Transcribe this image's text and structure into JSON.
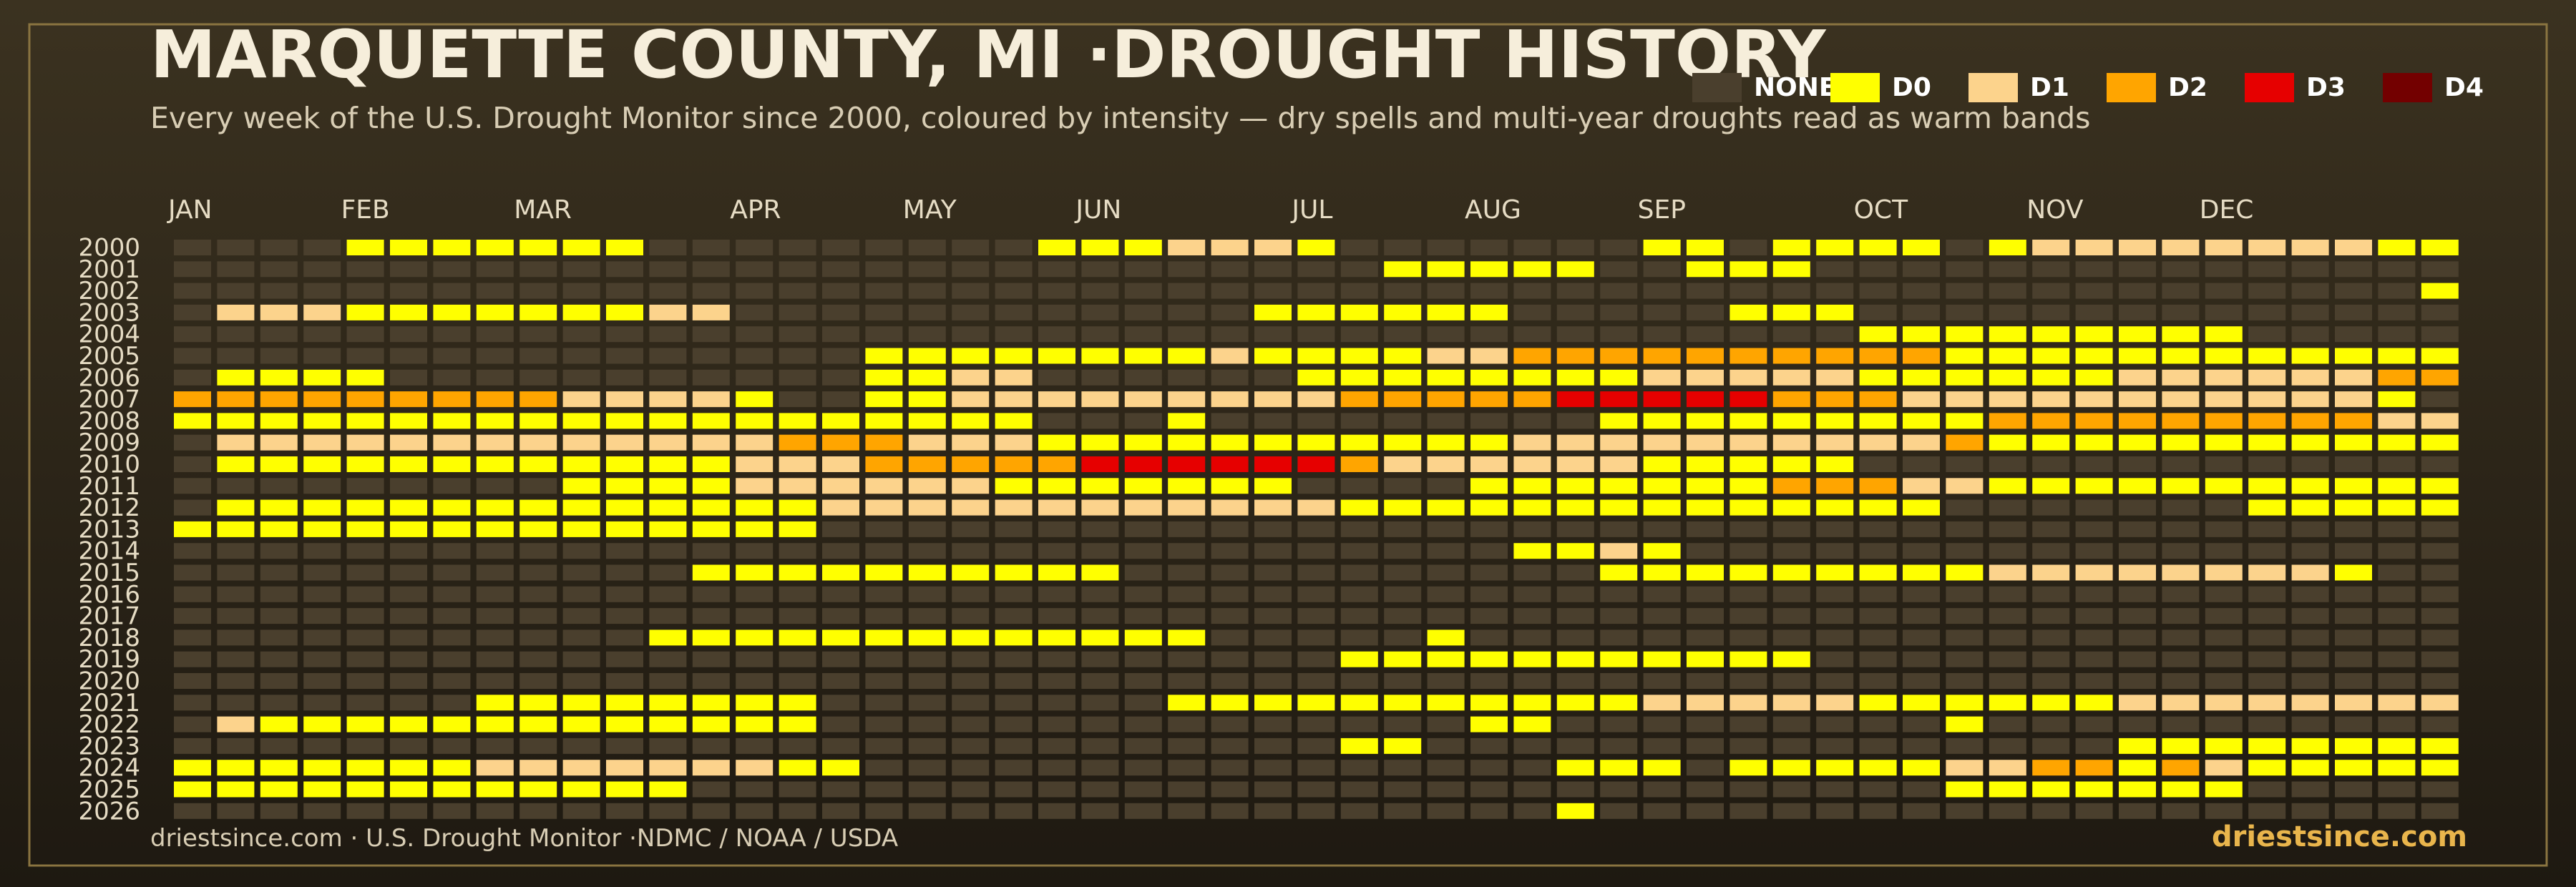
{
  "chart_data": {
    "type": "heatmap",
    "title": "MARQUETTE COUNTY, MI ·DROUGHT HISTORY",
    "subtitle": "Every week of the U.S. Drought Monitor since 2000, coloured by intensity — dry spells and multi-year droughts read as warm bands",
    "source": "driestsince.com  · U.S. Drought Monitor ·NDMC / NOAA / USDA",
    "brand": "driestsince.com",
    "levels": [
      {
        "name": "NONE",
        "color": "#4a3f2d"
      },
      {
        "name": "D0",
        "color": "#ffff00"
      },
      {
        "name": "D1",
        "color": "#fcd38c"
      },
      {
        "name": "D2",
        "color": "#ffa500"
      },
      {
        "name": "D3",
        "color": "#e60000"
      },
      {
        "name": "D4",
        "color": "#730000"
      }
    ],
    "xticks": [
      {
        "value": 0,
        "label": "JAN"
      },
      {
        "value": 4,
        "label": "FEB"
      },
      {
        "value": 8,
        "label": "MAR"
      },
      {
        "value": 13,
        "label": "APR"
      },
      {
        "value": 17,
        "label": "MAY"
      },
      {
        "value": 21,
        "label": "JUN"
      },
      {
        "value": 26,
        "label": "JUL"
      },
      {
        "value": 30,
        "label": "AUG"
      },
      {
        "value": 34,
        "label": "SEP"
      },
      {
        "value": 39,
        "label": "OCT"
      },
      {
        "value": 43,
        "label": "NOV"
      },
      {
        "value": 47,
        "label": "DEC"
      }
    ],
    "years": [
      "2000",
      "2001",
      "2002",
      "2003",
      "2004",
      "2005",
      "2006",
      "2007",
      "2008",
      "2009",
      "2010",
      "2011",
      "2012",
      "2013",
      "2014",
      "2015",
      "2016",
      "2017",
      "2018",
      "2019",
      "2020",
      "2021",
      "2022",
      "2023",
      "2024",
      "2025",
      "2026"
    ],
    "values": [
      [
        0,
        0,
        0,
        0,
        1,
        1,
        1,
        1,
        1,
        1,
        1,
        0,
        0,
        0,
        0,
        0,
        0,
        0,
        0,
        0,
        1,
        1,
        1,
        2,
        2,
        2,
        1,
        0,
        0,
        0,
        0,
        0,
        0,
        0,
        1,
        1,
        0,
        1,
        1,
        1,
        1,
        0,
        1,
        2,
        2,
        2,
        2,
        2,
        2,
        2,
        2,
        1,
        1
      ],
      [
        0,
        0,
        0,
        0,
        0,
        0,
        0,
        0,
        0,
        0,
        0,
        0,
        0,
        0,
        0,
        0,
        0,
        0,
        0,
        0,
        0,
        0,
        0,
        0,
        0,
        0,
        0,
        0,
        1,
        1,
        1,
        1,
        1,
        0,
        0,
        1,
        1,
        1,
        0,
        0,
        0,
        0,
        0,
        0,
        0,
        0,
        0,
        0,
        0,
        0,
        0,
        0,
        0
      ],
      [
        0,
        0,
        0,
        0,
        0,
        0,
        0,
        0,
        0,
        0,
        0,
        0,
        0,
        0,
        0,
        0,
        0,
        0,
        0,
        0,
        0,
        0,
        0,
        0,
        0,
        0,
        0,
        0,
        0,
        0,
        0,
        0,
        0,
        0,
        0,
        0,
        0,
        0,
        0,
        0,
        0,
        0,
        0,
        0,
        0,
        0,
        0,
        0,
        0,
        0,
        0,
        0,
        1
      ],
      [
        0,
        2,
        2,
        2,
        1,
        1,
        1,
        1,
        1,
        1,
        1,
        2,
        2,
        0,
        0,
        0,
        0,
        0,
        0,
        0,
        0,
        0,
        0,
        0,
        0,
        1,
        1,
        1,
        1,
        1,
        1,
        0,
        0,
        0,
        0,
        0,
        1,
        1,
        1,
        0,
        0,
        0,
        0,
        0,
        0,
        0,
        0,
        0,
        0,
        0,
        0,
        0,
        0
      ],
      [
        0,
        0,
        0,
        0,
        0,
        0,
        0,
        0,
        0,
        0,
        0,
        0,
        0,
        0,
        0,
        0,
        0,
        0,
        0,
        0,
        0,
        0,
        0,
        0,
        0,
        0,
        0,
        0,
        0,
        0,
        0,
        0,
        0,
        0,
        0,
        0,
        0,
        0,
        0,
        1,
        1,
        1,
        1,
        1,
        1,
        1,
        1,
        1,
        0,
        0,
        0,
        0,
        0
      ],
      [
        0,
        0,
        0,
        0,
        0,
        0,
        0,
        0,
        0,
        0,
        0,
        0,
        0,
        0,
        0,
        0,
        1,
        1,
        1,
        1,
        1,
        1,
        1,
        1,
        2,
        1,
        1,
        1,
        1,
        2,
        2,
        3,
        3,
        3,
        3,
        3,
        3,
        3,
        3,
        3,
        3,
        1,
        1,
        1,
        1,
        1,
        1,
        1,
        1,
        1,
        1,
        1,
        1
      ],
      [
        0,
        1,
        1,
        1,
        1,
        0,
        0,
        0,
        0,
        0,
        0,
        0,
        0,
        0,
        0,
        0,
        1,
        1,
        2,
        2,
        0,
        0,
        0,
        0,
        0,
        0,
        1,
        1,
        1,
        1,
        1,
        1,
        1,
        1,
        2,
        2,
        2,
        2,
        2,
        1,
        1,
        1,
        1,
        1,
        1,
        2,
        2,
        2,
        2,
        2,
        2,
        3,
        3
      ],
      [
        3,
        3,
        3,
        3,
        3,
        3,
        3,
        3,
        3,
        2,
        2,
        2,
        2,
        1,
        0,
        0,
        1,
        1,
        2,
        2,
        2,
        2,
        2,
        2,
        2,
        2,
        2,
        3,
        3,
        3,
        3,
        3,
        4,
        4,
        4,
        4,
        4,
        3,
        3,
        3,
        2,
        2,
        2,
        2,
        2,
        2,
        2,
        2,
        2,
        2,
        2,
        1,
        0
      ],
      [
        1,
        1,
        1,
        1,
        1,
        1,
        1,
        1,
        1,
        1,
        1,
        1,
        1,
        1,
        1,
        1,
        1,
        1,
        1,
        1,
        0,
        0,
        0,
        1,
        0,
        0,
        0,
        0,
        0,
        0,
        0,
        0,
        0,
        1,
        1,
        1,
        1,
        1,
        1,
        1,
        1,
        1,
        3,
        3,
        3,
        3,
        3,
        3,
        3,
        3,
        3,
        2,
        2
      ],
      [
        0,
        2,
        2,
        2,
        2,
        2,
        2,
        2,
        2,
        2,
        2,
        2,
        2,
        2,
        3,
        3,
        3,
        2,
        2,
        2,
        1,
        1,
        1,
        1,
        1,
        1,
        1,
        1,
        1,
        1,
        1,
        2,
        2,
        2,
        2,
        2,
        2,
        2,
        2,
        2,
        2,
        3,
        1,
        1,
        1,
        1,
        1,
        1,
        1,
        1,
        1,
        1,
        1
      ],
      [
        0,
        1,
        1,
        1,
        1,
        1,
        1,
        1,
        1,
        1,
        1,
        1,
        1,
        2,
        2,
        2,
        3,
        3,
        3,
        3,
        3,
        4,
        4,
        4,
        4,
        4,
        4,
        3,
        2,
        2,
        2,
        2,
        2,
        2,
        1,
        1,
        1,
        1,
        1,
        0,
        0,
        0,
        0,
        0,
        0,
        0,
        0,
        0,
        0,
        0,
        0,
        0,
        0
      ],
      [
        0,
        0,
        0,
        0,
        0,
        0,
        0,
        0,
        0,
        1,
        1,
        1,
        1,
        2,
        2,
        2,
        2,
        2,
        2,
        1,
        1,
        1,
        1,
        1,
        1,
        1,
        0,
        0,
        0,
        0,
        1,
        1,
        1,
        1,
        1,
        1,
        1,
        3,
        3,
        3,
        2,
        2,
        1,
        1,
        1,
        1,
        1,
        1,
        1,
        1,
        1,
        1,
        1
      ],
      [
        0,
        1,
        1,
        1,
        1,
        1,
        1,
        1,
        1,
        1,
        1,
        1,
        1,
        1,
        1,
        2,
        2,
        2,
        2,
        2,
        2,
        2,
        2,
        2,
        2,
        2,
        2,
        1,
        1,
        1,
        1,
        1,
        1,
        1,
        1,
        1,
        1,
        1,
        1,
        1,
        1,
        0,
        0,
        0,
        0,
        0,
        0,
        0,
        1,
        1,
        1,
        1,
        1
      ],
      [
        1,
        1,
        1,
        1,
        1,
        1,
        1,
        1,
        1,
        1,
        1,
        1,
        1,
        1,
        1,
        0,
        0,
        0,
        0,
        0,
        0,
        0,
        0,
        0,
        0,
        0,
        0,
        0,
        0,
        0,
        0,
        0,
        0,
        0,
        0,
        0,
        0,
        0,
        0,
        0,
        0,
        0,
        0,
        0,
        0,
        0,
        0,
        0,
        0,
        0,
        0,
        0,
        0
      ],
      [
        0,
        0,
        0,
        0,
        0,
        0,
        0,
        0,
        0,
        0,
        0,
        0,
        0,
        0,
        0,
        0,
        0,
        0,
        0,
        0,
        0,
        0,
        0,
        0,
        0,
        0,
        0,
        0,
        0,
        0,
        0,
        1,
        1,
        2,
        1,
        0,
        0,
        0,
        0,
        0,
        0,
        0,
        0,
        0,
        0,
        0,
        0,
        0,
        0,
        0,
        0,
        0,
        0
      ],
      [
        0,
        0,
        0,
        0,
        0,
        0,
        0,
        0,
        0,
        0,
        0,
        0,
        1,
        1,
        1,
        1,
        1,
        1,
        1,
        1,
        1,
        1,
        0,
        0,
        0,
        0,
        0,
        0,
        0,
        0,
        0,
        0,
        0,
        1,
        1,
        1,
        1,
        1,
        1,
        1,
        1,
        1,
        2,
        2,
        2,
        2,
        2,
        2,
        2,
        2,
        1,
        0,
        0
      ],
      [
        0,
        0,
        0,
        0,
        0,
        0,
        0,
        0,
        0,
        0,
        0,
        0,
        0,
        0,
        0,
        0,
        0,
        0,
        0,
        0,
        0,
        0,
        0,
        0,
        0,
        0,
        0,
        0,
        0,
        0,
        0,
        0,
        0,
        0,
        0,
        0,
        0,
        0,
        0,
        0,
        0,
        0,
        0,
        0,
        0,
        0,
        0,
        0,
        0,
        0,
        0,
        0,
        0
      ],
      [
        0,
        0,
        0,
        0,
        0,
        0,
        0,
        0,
        0,
        0,
        0,
        0,
        0,
        0,
        0,
        0,
        0,
        0,
        0,
        0,
        0,
        0,
        0,
        0,
        0,
        0,
        0,
        0,
        0,
        0,
        0,
        0,
        0,
        0,
        0,
        0,
        0,
        0,
        0,
        0,
        0,
        0,
        0,
        0,
        0,
        0,
        0,
        0,
        0,
        0,
        0,
        0,
        0
      ],
      [
        0,
        0,
        0,
        0,
        0,
        0,
        0,
        0,
        0,
        0,
        0,
        1,
        1,
        1,
        1,
        1,
        1,
        1,
        1,
        1,
        1,
        1,
        1,
        1,
        0,
        0,
        0,
        0,
        0,
        1,
        0,
        0,
        0,
        0,
        0,
        0,
        0,
        0,
        0,
        0,
        0,
        0,
        0,
        0,
        0,
        0,
        0,
        0,
        0,
        0,
        0,
        0,
        0
      ],
      [
        0,
        0,
        0,
        0,
        0,
        0,
        0,
        0,
        0,
        0,
        0,
        0,
        0,
        0,
        0,
        0,
        0,
        0,
        0,
        0,
        0,
        0,
        0,
        0,
        0,
        0,
        0,
        1,
        1,
        1,
        1,
        1,
        1,
        1,
        1,
        1,
        1,
        1,
        0,
        0,
        0,
        0,
        0,
        0,
        0,
        0,
        0,
        0,
        0,
        0,
        0,
        0,
        0
      ],
      [
        0,
        0,
        0,
        0,
        0,
        0,
        0,
        0,
        0,
        0,
        0,
        0,
        0,
        0,
        0,
        0,
        0,
        0,
        0,
        0,
        0,
        0,
        0,
        0,
        0,
        0,
        0,
        0,
        0,
        0,
        0,
        0,
        0,
        0,
        0,
        0,
        0,
        0,
        0,
        0,
        0,
        0,
        0,
        0,
        0,
        0,
        0,
        0,
        0,
        0,
        0,
        0,
        0
      ],
      [
        0,
        0,
        0,
        0,
        0,
        0,
        0,
        1,
        1,
        1,
        1,
        1,
        1,
        1,
        1,
        0,
        0,
        0,
        0,
        0,
        0,
        0,
        0,
        1,
        1,
        1,
        1,
        1,
        1,
        1,
        1,
        1,
        1,
        1,
        2,
        2,
        2,
        2,
        2,
        1,
        1,
        1,
        1,
        1,
        1,
        2,
        2,
        2,
        2,
        2,
        2,
        2,
        2
      ],
      [
        0,
        2,
        1,
        1,
        1,
        1,
        1,
        1,
        1,
        1,
        1,
        1,
        1,
        1,
        1,
        0,
        0,
        0,
        0,
        0,
        0,
        0,
        0,
        0,
        0,
        0,
        0,
        0,
        0,
        0,
        1,
        1,
        0,
        0,
        0,
        0,
        0,
        0,
        0,
        0,
        0,
        1,
        0,
        0,
        0,
        0,
        0,
        0,
        0,
        0,
        0,
        0,
        0
      ],
      [
        0,
        0,
        0,
        0,
        0,
        0,
        0,
        0,
        0,
        0,
        0,
        0,
        0,
        0,
        0,
        0,
        0,
        0,
        0,
        0,
        0,
        0,
        0,
        0,
        0,
        0,
        0,
        1,
        1,
        0,
        0,
        0,
        0,
        0,
        0,
        0,
        0,
        0,
        0,
        0,
        0,
        0,
        0,
        0,
        0,
        1,
        1,
        1,
        1,
        1,
        1,
        1,
        1
      ],
      [
        1,
        1,
        1,
        1,
        1,
        1,
        1,
        2,
        2,
        2,
        2,
        2,
        2,
        2,
        1,
        1,
        0,
        0,
        0,
        0,
        0,
        0,
        0,
        0,
        0,
        0,
        0,
        0,
        0,
        0,
        0,
        0,
        1,
        1,
        1,
        0,
        1,
        1,
        1,
        1,
        1,
        2,
        2,
        3,
        3,
        1,
        3,
        2,
        1,
        1,
        1,
        1,
        1
      ],
      [
        1,
        1,
        1,
        1,
        1,
        1,
        1,
        1,
        1,
        1,
        1,
        1,
        0,
        0,
        0,
        0,
        0,
        0,
        0,
        0,
        0,
        0,
        0,
        0,
        0,
        0,
        0,
        0,
        0,
        0,
        0,
        0,
        0,
        0,
        0,
        0,
        0,
        0,
        0,
        0,
        0,
        1,
        1,
        1,
        1,
        1,
        1,
        1,
        0,
        0,
        0,
        0,
        0
      ],
      [
        0,
        0,
        0,
        0,
        0,
        0,
        0,
        0,
        0,
        0,
        0,
        0,
        0,
        0,
        0,
        0,
        0,
        0,
        0,
        0,
        0,
        0,
        0,
        0,
        0,
        0,
        0,
        0,
        0,
        0,
        0,
        0,
        1,
        0,
        0,
        0,
        0,
        0,
        0,
        0,
        0,
        0,
        0,
        0,
        0,
        0,
        0,
        0,
        0,
        0,
        0,
        0,
        0
      ]
    ]
  }
}
